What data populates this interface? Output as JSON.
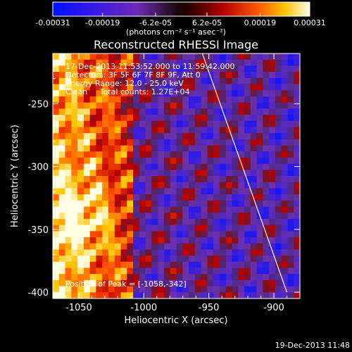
{
  "colorbar": {
    "tick_labels": [
      "-0.00031",
      "-0.00019",
      "-6.2e-05",
      "6.2e-05",
      "0.00019",
      "0.00031"
    ],
    "tick_values": [
      -0.00031,
      -0.00019,
      -6.2e-05,
      6.2e-05,
      0.00019,
      0.00031
    ],
    "range": [
      -0.00031,
      0.00031
    ],
    "unit_label": "(photons cm⁻² s⁻¹ asec⁻²)"
  },
  "chart_data": {
    "type": "heatmap",
    "title": "Reconstructed RHESSI Image",
    "xlabel": "Heliocentric X (arcsec)",
    "ylabel": "Heliocentric Y (arcsec)",
    "xlim": [
      -1070,
      -880
    ],
    "ylim": [
      -405,
      -210
    ],
    "x_ticks": [
      -1050,
      -1000,
      -950,
      -900
    ],
    "x_tick_labels": [
      "-1050",
      "-1000",
      "-950",
      "-900"
    ],
    "y_ticks": [
      -400,
      -350,
      -300,
      -250
    ],
    "y_tick_labels": [
      "-400",
      "-350",
      "-300",
      "-250"
    ],
    "limb_line": [
      [
        -955,
        -210
      ],
      [
        -890,
        -400
      ]
    ],
    "annotations": {
      "time": "17-Dec-2013 11:53:52.000 to 11:59:42.000",
      "detectors": "Detectors: 3F 5F 6F 7F 8F 9F, Att 0",
      "energy": "Energy Range: 12.0 - 25.0 keV",
      "counts": "Clean     Total counts: 1.27E+04",
      "peak": "Position of Peak = [-1058,-342]"
    },
    "peak": [
      -1058,
      -342
    ]
  },
  "footer": {
    "timestamp": "19-Dec-2013 11:48"
  },
  "colors": {
    "background": "#000000",
    "text": "#ffffff",
    "limb": "#ffffff"
  }
}
